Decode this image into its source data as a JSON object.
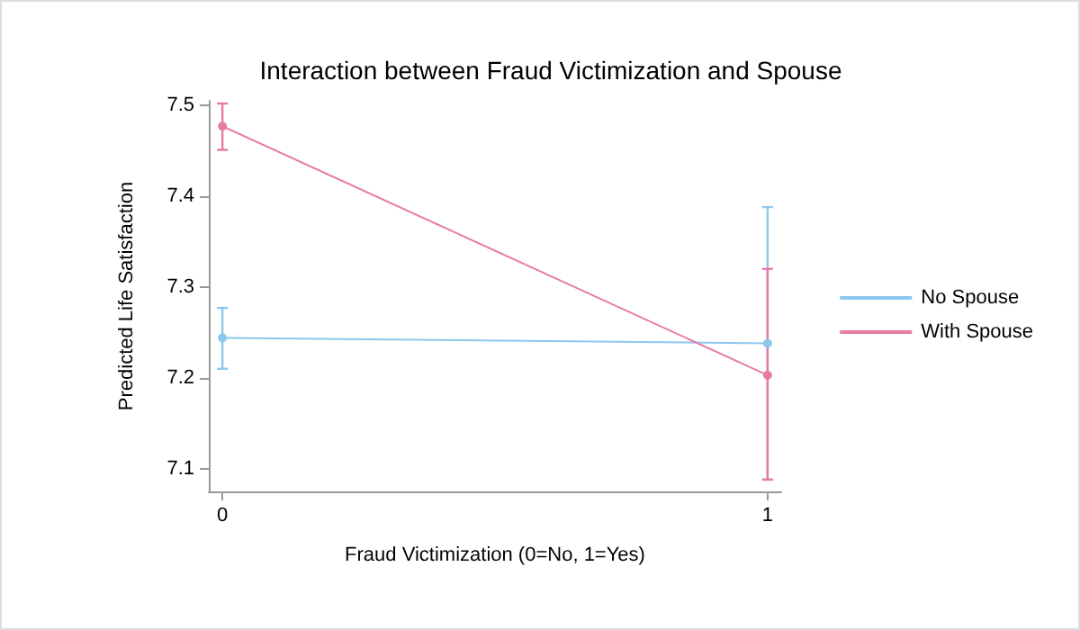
{
  "chart_data": {
    "type": "line",
    "title": "Interaction between Fraud Victimization and Spouse",
    "xlabel": "Fraud Victimization (0=No, 1=Yes)",
    "ylabel": "Predicted Life Satisfaction",
    "x": [
      0,
      1
    ],
    "xlim": [
      -0.025,
      1.025
    ],
    "xticks": [
      0,
      1
    ],
    "ylim": [
      7.075,
      7.505
    ],
    "yticks": [
      7.1,
      7.2,
      7.3,
      7.4,
      7.5
    ],
    "series": [
      {
        "name": "No Spouse",
        "color": "#8cc8ee",
        "values": [
          7.244,
          7.238
        ],
        "errors": [
          [
            7.21,
            7.277
          ],
          [
            7.088,
            7.388
          ]
        ]
      },
      {
        "name": "With Spouse",
        "color": "#e67ba3",
        "values": [
          7.477,
          7.203
        ],
        "errors": [
          [
            7.451,
            7.502
          ],
          [
            7.088,
            7.32
          ]
        ]
      }
    ],
    "grid": false,
    "legend": "right",
    "marker": "circle",
    "line_style": "solid"
  }
}
